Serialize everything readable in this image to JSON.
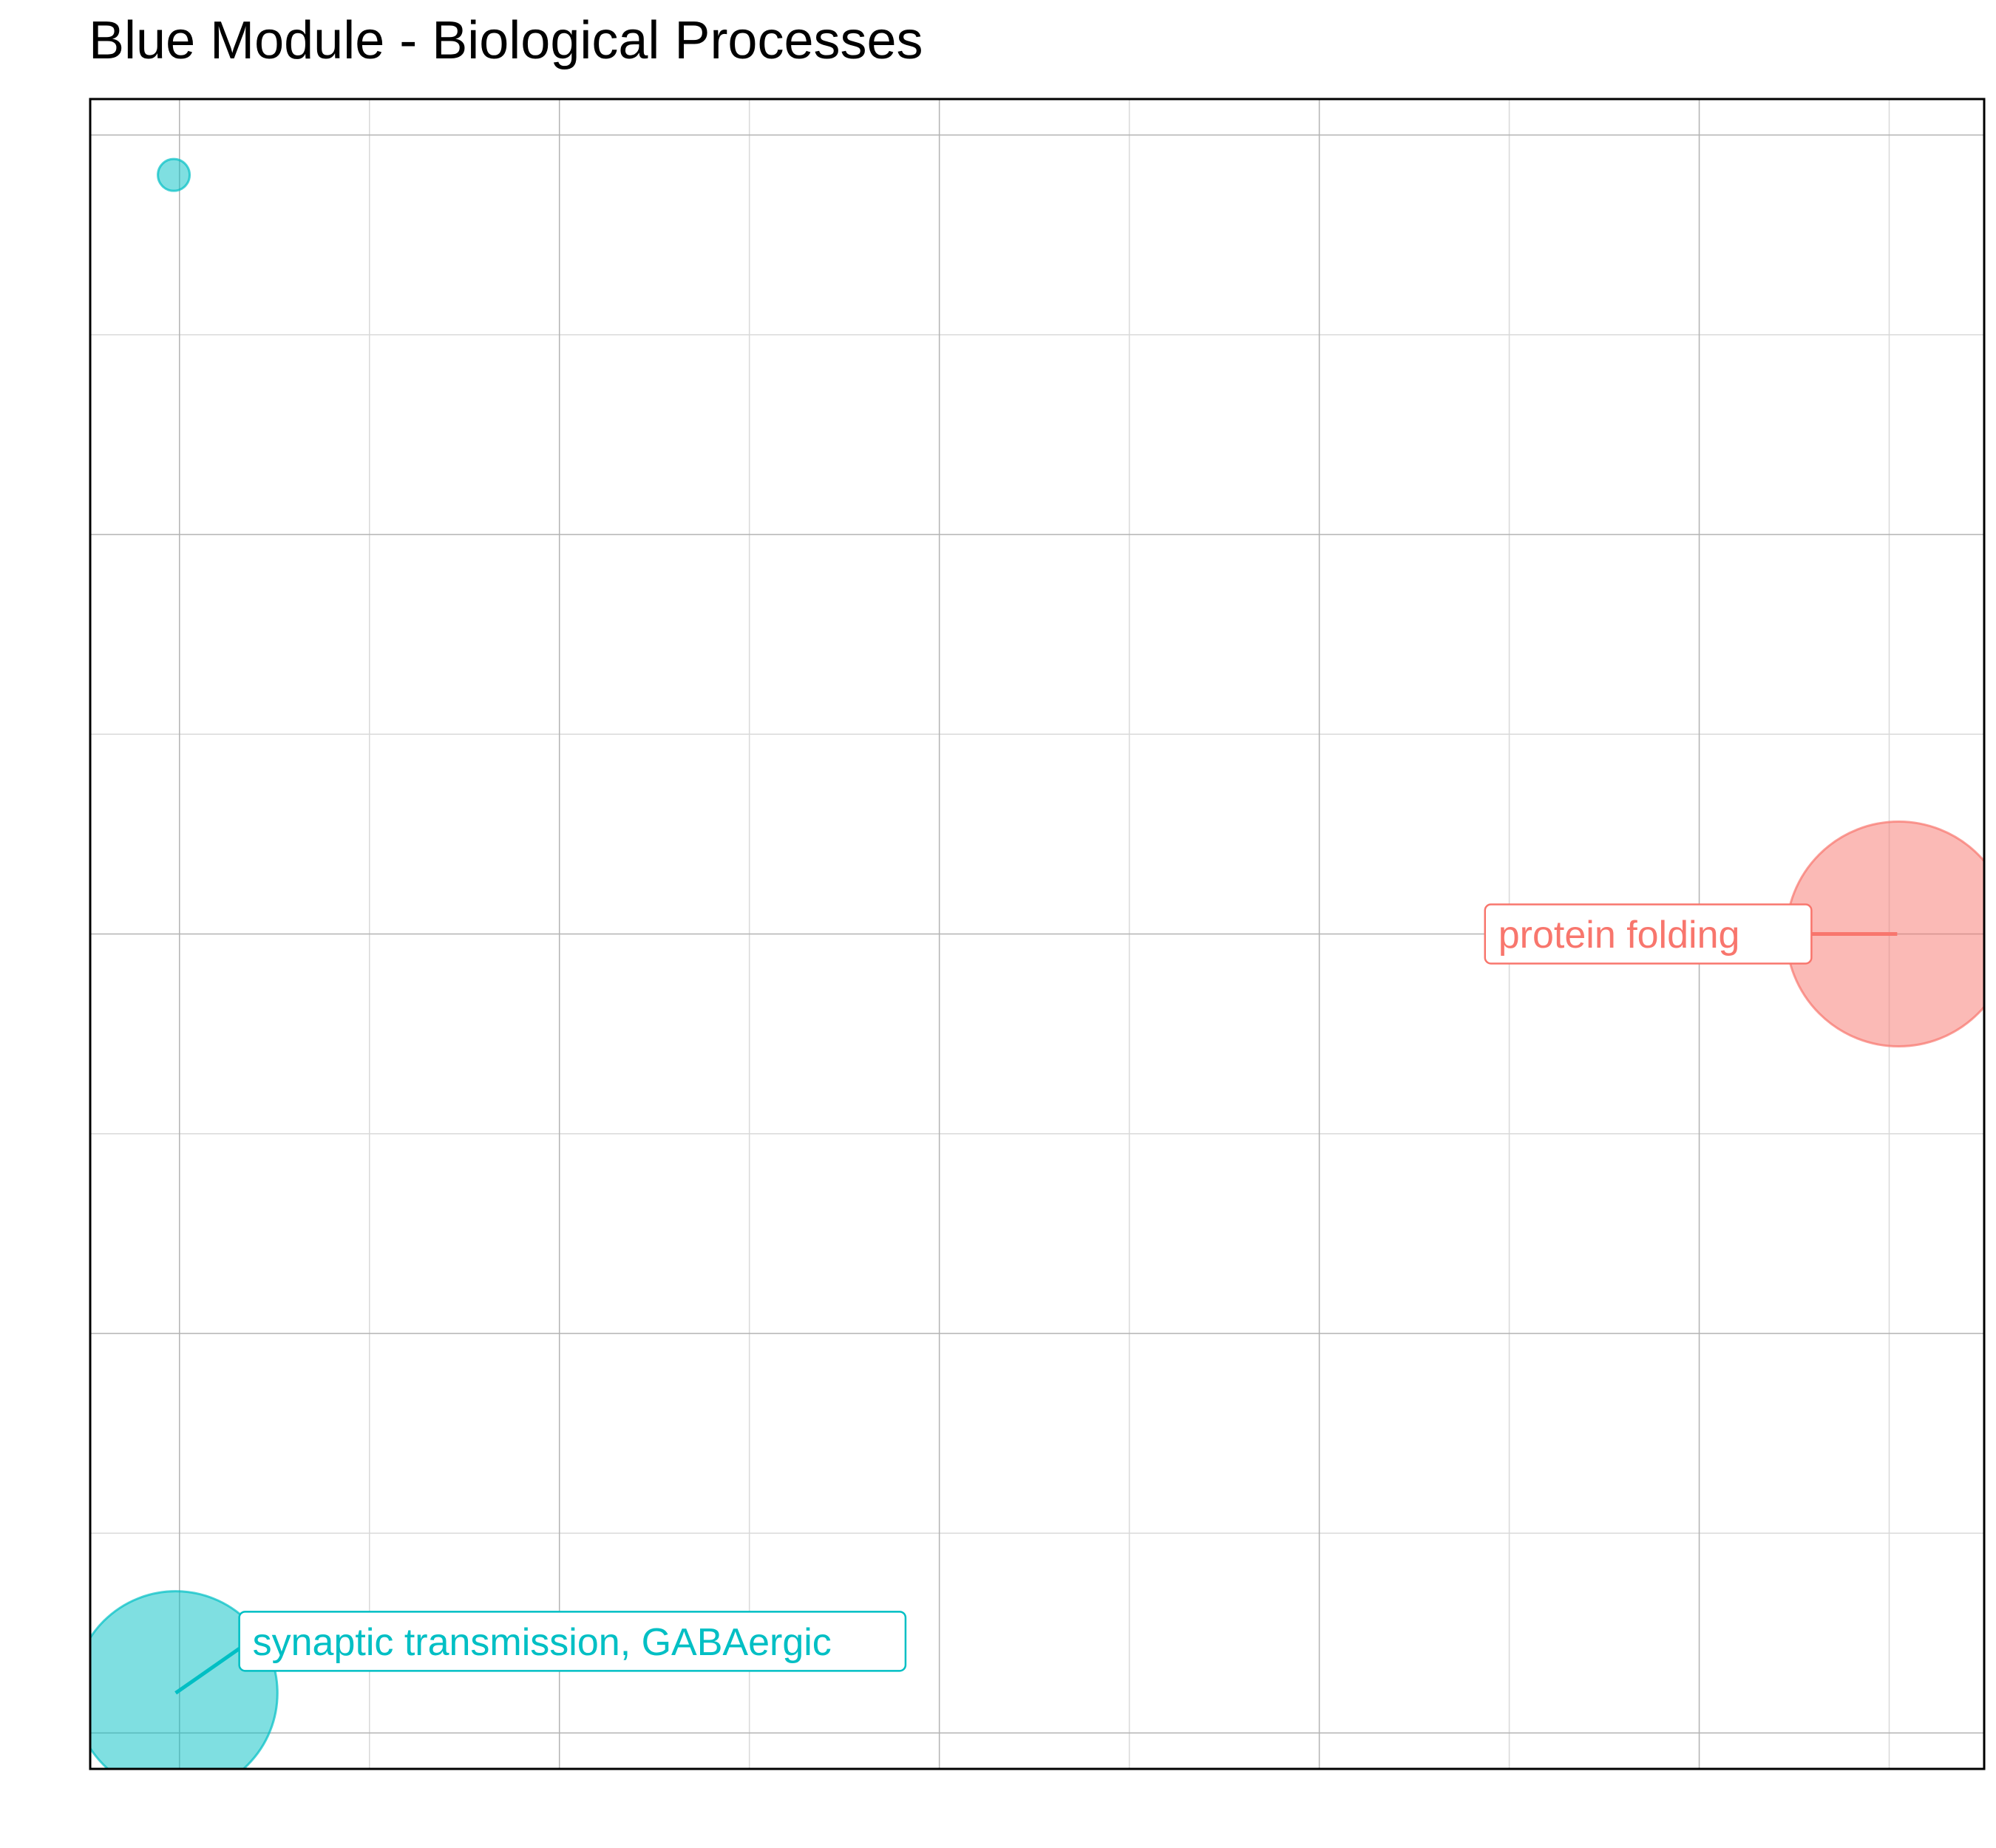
{
  "chart_data": {
    "type": "scatter",
    "title": "Blue Module - Biological Processes",
    "xlabel": "",
    "ylabel": "",
    "xlim": [
      -0.47,
      9.5
    ],
    "ylim": [
      -0.18,
      8.18
    ],
    "grid": true,
    "legend": "none",
    "points": [
      {
        "label": "protein folding",
        "x": 9.05,
        "y": 4.0,
        "size": 1.0,
        "color": "#F8766D"
      },
      {
        "label": "synaptic transmission, GABAergic",
        "x": -0.02,
        "y": 0.2,
        "size": 0.82,
        "color": "#00BFC4"
      },
      {
        "label": "",
        "x": -0.03,
        "y": 7.8,
        "size": 0.02,
        "color": "#00BFC4"
      }
    ]
  },
  "colors": {
    "grid_major": "#B3B3B3",
    "grid_minor": "#D9D9D9",
    "panel_border": "#000000"
  }
}
